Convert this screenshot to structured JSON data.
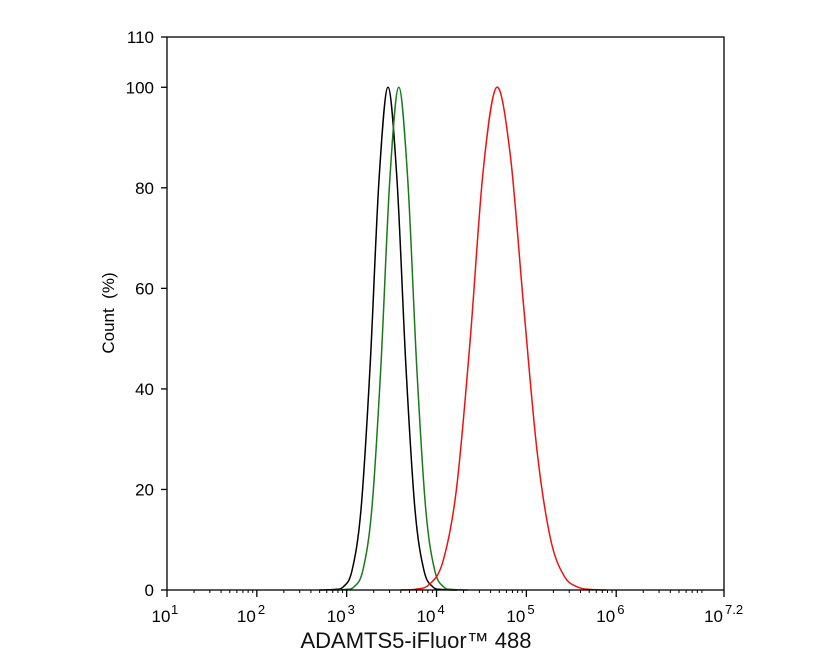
{
  "chart_data": {
    "type": "line",
    "title": "",
    "xlabel": "ADAMTS5-iFluor™ 488",
    "ylabel": "Count  (%)",
    "x_scale": "log",
    "xlim": [
      10,
      15848932
    ],
    "ylim": [
      0,
      110
    ],
    "grid": false,
    "x_ticks": [
      {
        "base": "10",
        "exp": "1",
        "value": 10
      },
      {
        "base": "10",
        "exp": "2",
        "value": 100
      },
      {
        "base": "10",
        "exp": "3",
        "value": 1000
      },
      {
        "base": "10",
        "exp": "4",
        "value": 10000
      },
      {
        "base": "10",
        "exp": "5",
        "value": 100000
      },
      {
        "base": "10",
        "exp": "6",
        "value": 1000000
      },
      {
        "base": "10",
        "exp": "7.2",
        "value": 15848932
      }
    ],
    "y_ticks": [
      "0",
      "20",
      "40",
      "60",
      "80",
      "100",
      "110"
    ],
    "series": [
      {
        "color": "#000000",
        "x": [
          724,
          912,
          1148,
          1445,
          1820,
          2291,
          2884,
          3631,
          4571,
          5754,
          7244,
          9120,
          11482
        ],
        "y": [
          0.1,
          0.6,
          3.9,
          16.1,
          44.3,
          81.6,
          100,
          81.6,
          44.3,
          16.1,
          3.9,
          0.6,
          0.1
        ]
      },
      {
        "color": "#1a7a1a",
        "x": [
          955,
          1202,
          1514,
          1905,
          2399,
          3020,
          3802,
          4786,
          6026,
          7586,
          9550,
          12023,
          15136
        ],
        "y": [
          0.1,
          0.6,
          3.9,
          16.1,
          44.3,
          81.6,
          100,
          81.6,
          44.3,
          16.1,
          3.9,
          0.6,
          0.1
        ]
      },
      {
        "color": "#ee1111",
        "x": [
          5888,
          8318,
          11749,
          16596,
          23442,
          33113,
          46774,
          66069,
          93325,
          131826,
          186209,
          263027,
          371535,
          524807
        ],
        "y": [
          0.15,
          1.1,
          5.6,
          19.8,
          48.7,
          83.5,
          100,
          86.7,
          56.4,
          27.5,
          10.1,
          2.8,
          0.6,
          0.1
        ]
      }
    ]
  }
}
